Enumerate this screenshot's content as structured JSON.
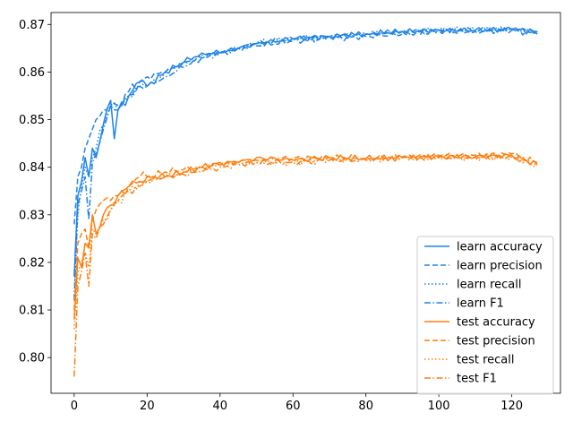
{
  "chart_data": {
    "type": "line",
    "title": "",
    "xlabel": "",
    "ylabel": "",
    "xlim": [
      -6.35,
      133.35
    ],
    "ylim": [
      0.7925,
      0.8725
    ],
    "xticks": [
      0,
      20,
      40,
      60,
      80,
      100,
      120
    ],
    "yticks": [
      0.8,
      0.81,
      0.82,
      0.83,
      0.84,
      0.85,
      0.86,
      0.87
    ],
    "ytick_labels": [
      "0.80",
      "0.81",
      "0.82",
      "0.83",
      "0.84",
      "0.85",
      "0.86",
      "0.87"
    ],
    "grid": false,
    "legend_position": "lower-right",
    "colors": {
      "learn": "#1f84e8",
      "test": "#ff7f0e"
    },
    "x_range": [
      0,
      127
    ],
    "series": [
      {
        "name": "learn accuracy",
        "group": "learn",
        "style": "solid",
        "points": [
          [
            0,
            0.817
          ],
          [
            1,
            0.834
          ],
          [
            2,
            0.837
          ],
          [
            3,
            0.842
          ],
          [
            4,
            0.838
          ],
          [
            5,
            0.844
          ],
          [
            6,
            0.842
          ],
          [
            8,
            0.849
          ],
          [
            10,
            0.854
          ],
          [
            11,
            0.846
          ],
          [
            12,
            0.852
          ],
          [
            15,
            0.855
          ],
          [
            18,
            0.858
          ],
          [
            20,
            0.857
          ],
          [
            25,
            0.86
          ],
          [
            30,
            0.862
          ],
          [
            35,
            0.864
          ],
          [
            40,
            0.864
          ],
          [
            45,
            0.865
          ],
          [
            50,
            0.866
          ],
          [
            60,
            0.867
          ],
          [
            70,
            0.8675
          ],
          [
            80,
            0.868
          ],
          [
            90,
            0.8685
          ],
          [
            100,
            0.8688
          ],
          [
            110,
            0.8688
          ],
          [
            120,
            0.869
          ],
          [
            127,
            0.8685
          ]
        ]
      },
      {
        "name": "learn precision",
        "group": "learn",
        "style": "dashed",
        "points": [
          [
            0,
            0.828
          ],
          [
            1,
            0.838
          ],
          [
            2,
            0.84
          ],
          [
            3,
            0.844
          ],
          [
            4,
            0.846
          ],
          [
            5,
            0.848
          ],
          [
            6,
            0.85
          ],
          [
            8,
            0.852
          ],
          [
            10,
            0.854
          ],
          [
            12,
            0.853
          ],
          [
            15,
            0.856
          ],
          [
            18,
            0.858
          ],
          [
            20,
            0.859
          ],
          [
            25,
            0.86
          ],
          [
            30,
            0.862
          ],
          [
            35,
            0.863
          ],
          [
            40,
            0.864
          ],
          [
            45,
            0.865
          ],
          [
            50,
            0.8655
          ],
          [
            60,
            0.8665
          ],
          [
            70,
            0.867
          ],
          [
            80,
            0.8675
          ],
          [
            90,
            0.868
          ],
          [
            100,
            0.8685
          ],
          [
            110,
            0.8685
          ],
          [
            120,
            0.8688
          ],
          [
            127,
            0.868
          ]
        ]
      },
      {
        "name": "learn recall",
        "group": "learn",
        "style": "dotted",
        "points": [
          [
            0,
            0.813
          ],
          [
            1,
            0.83
          ],
          [
            2,
            0.836
          ],
          [
            3,
            0.84
          ],
          [
            4,
            0.838
          ],
          [
            5,
            0.842
          ],
          [
            6,
            0.844
          ],
          [
            8,
            0.849
          ],
          [
            10,
            0.853
          ],
          [
            12,
            0.852
          ],
          [
            15,
            0.855
          ],
          [
            18,
            0.857
          ],
          [
            20,
            0.857
          ],
          [
            25,
            0.86
          ],
          [
            30,
            0.862
          ],
          [
            35,
            0.8635
          ],
          [
            40,
            0.864
          ],
          [
            45,
            0.865
          ],
          [
            50,
            0.866
          ],
          [
            60,
            0.867
          ],
          [
            70,
            0.8675
          ],
          [
            80,
            0.868
          ],
          [
            90,
            0.8685
          ],
          [
            100,
            0.8688
          ],
          [
            110,
            0.8688
          ],
          [
            120,
            0.869
          ],
          [
            127,
            0.8685
          ]
        ]
      },
      {
        "name": "learn F1",
        "group": "learn",
        "style": "dashdot",
        "points": [
          [
            0,
            0.812
          ],
          [
            1,
            0.832
          ],
          [
            2,
            0.835
          ],
          [
            3,
            0.838
          ],
          [
            4,
            0.829
          ],
          [
            5,
            0.841
          ],
          [
            6,
            0.843
          ],
          [
            8,
            0.848
          ],
          [
            10,
            0.853
          ],
          [
            12,
            0.852
          ],
          [
            15,
            0.855
          ],
          [
            18,
            0.857
          ],
          [
            20,
            0.857
          ],
          [
            25,
            0.859
          ],
          [
            30,
            0.861
          ],
          [
            35,
            0.863
          ],
          [
            40,
            0.864
          ],
          [
            45,
            0.865
          ],
          [
            50,
            0.866
          ],
          [
            60,
            0.867
          ],
          [
            70,
            0.8675
          ],
          [
            80,
            0.868
          ],
          [
            90,
            0.8685
          ],
          [
            100,
            0.8688
          ],
          [
            110,
            0.8688
          ],
          [
            120,
            0.869
          ],
          [
            127,
            0.8685
          ]
        ]
      },
      {
        "name": "test accuracy",
        "group": "test",
        "style": "solid",
        "points": [
          [
            0,
            0.808
          ],
          [
            1,
            0.821
          ],
          [
            2,
            0.819
          ],
          [
            3,
            0.824
          ],
          [
            4,
            0.823
          ],
          [
            5,
            0.83
          ],
          [
            6,
            0.826
          ],
          [
            8,
            0.83
          ],
          [
            10,
            0.832
          ],
          [
            12,
            0.834
          ],
          [
            15,
            0.836
          ],
          [
            18,
            0.837
          ],
          [
            20,
            0.838
          ],
          [
            25,
            0.838
          ],
          [
            30,
            0.839
          ],
          [
            35,
            0.84
          ],
          [
            40,
            0.841
          ],
          [
            45,
            0.841
          ],
          [
            50,
            0.842
          ],
          [
            60,
            0.8415
          ],
          [
            70,
            0.842
          ],
          [
            80,
            0.8418
          ],
          [
            90,
            0.842
          ],
          [
            100,
            0.8422
          ],
          [
            110,
            0.8422
          ],
          [
            120,
            0.8425
          ],
          [
            127,
            0.8405
          ]
        ]
      },
      {
        "name": "test precision",
        "group": "test",
        "style": "dashed",
        "points": [
          [
            0,
            0.81
          ],
          [
            1,
            0.824
          ],
          [
            2,
            0.826
          ],
          [
            3,
            0.827
          ],
          [
            4,
            0.823
          ],
          [
            5,
            0.829
          ],
          [
            6,
            0.831
          ],
          [
            8,
            0.833
          ],
          [
            10,
            0.833
          ],
          [
            12,
            0.834
          ],
          [
            15,
            0.836
          ],
          [
            18,
            0.838
          ],
          [
            20,
            0.838
          ],
          [
            25,
            0.839
          ],
          [
            30,
            0.8395
          ],
          [
            35,
            0.84
          ],
          [
            40,
            0.8405
          ],
          [
            45,
            0.841
          ],
          [
            50,
            0.8415
          ],
          [
            60,
            0.842
          ],
          [
            70,
            0.842
          ],
          [
            80,
            0.842
          ],
          [
            90,
            0.8422
          ],
          [
            100,
            0.8425
          ],
          [
            110,
            0.8425
          ],
          [
            120,
            0.8428
          ],
          [
            127,
            0.841
          ]
        ]
      },
      {
        "name": "test recall",
        "group": "test",
        "style": "dotted",
        "points": [
          [
            0,
            0.806
          ],
          [
            1,
            0.818
          ],
          [
            2,
            0.82
          ],
          [
            3,
            0.822
          ],
          [
            4,
            0.819
          ],
          [
            5,
            0.827
          ],
          [
            6,
            0.826
          ],
          [
            8,
            0.829
          ],
          [
            10,
            0.831
          ],
          [
            12,
            0.833
          ],
          [
            15,
            0.835
          ],
          [
            18,
            0.837
          ],
          [
            20,
            0.837
          ],
          [
            25,
            0.838
          ],
          [
            30,
            0.839
          ],
          [
            35,
            0.84
          ],
          [
            40,
            0.8405
          ],
          [
            45,
            0.841
          ],
          [
            50,
            0.841
          ],
          [
            60,
            0.841
          ],
          [
            70,
            0.8415
          ],
          [
            80,
            0.8415
          ],
          [
            90,
            0.842
          ],
          [
            100,
            0.842
          ],
          [
            110,
            0.842
          ],
          [
            120,
            0.8422
          ],
          [
            127,
            0.8405
          ]
        ]
      },
      {
        "name": "test F1",
        "group": "test",
        "style": "dashdot",
        "points": [
          [
            0,
            0.796
          ],
          [
            1,
            0.815
          ],
          [
            2,
            0.818
          ],
          [
            3,
            0.822
          ],
          [
            4,
            0.815
          ],
          [
            5,
            0.826
          ],
          [
            6,
            0.825
          ],
          [
            8,
            0.828
          ],
          [
            10,
            0.831
          ],
          [
            12,
            0.833
          ],
          [
            15,
            0.835
          ],
          [
            18,
            0.836
          ],
          [
            20,
            0.837
          ],
          [
            25,
            0.838
          ],
          [
            30,
            0.8385
          ],
          [
            35,
            0.839
          ],
          [
            40,
            0.84
          ],
          [
            45,
            0.8405
          ],
          [
            50,
            0.841
          ],
          [
            60,
            0.841
          ],
          [
            70,
            0.8415
          ],
          [
            80,
            0.8415
          ],
          [
            90,
            0.842
          ],
          [
            100,
            0.842
          ],
          [
            110,
            0.842
          ],
          [
            120,
            0.8422
          ],
          [
            127,
            0.8402
          ]
        ]
      }
    ]
  }
}
